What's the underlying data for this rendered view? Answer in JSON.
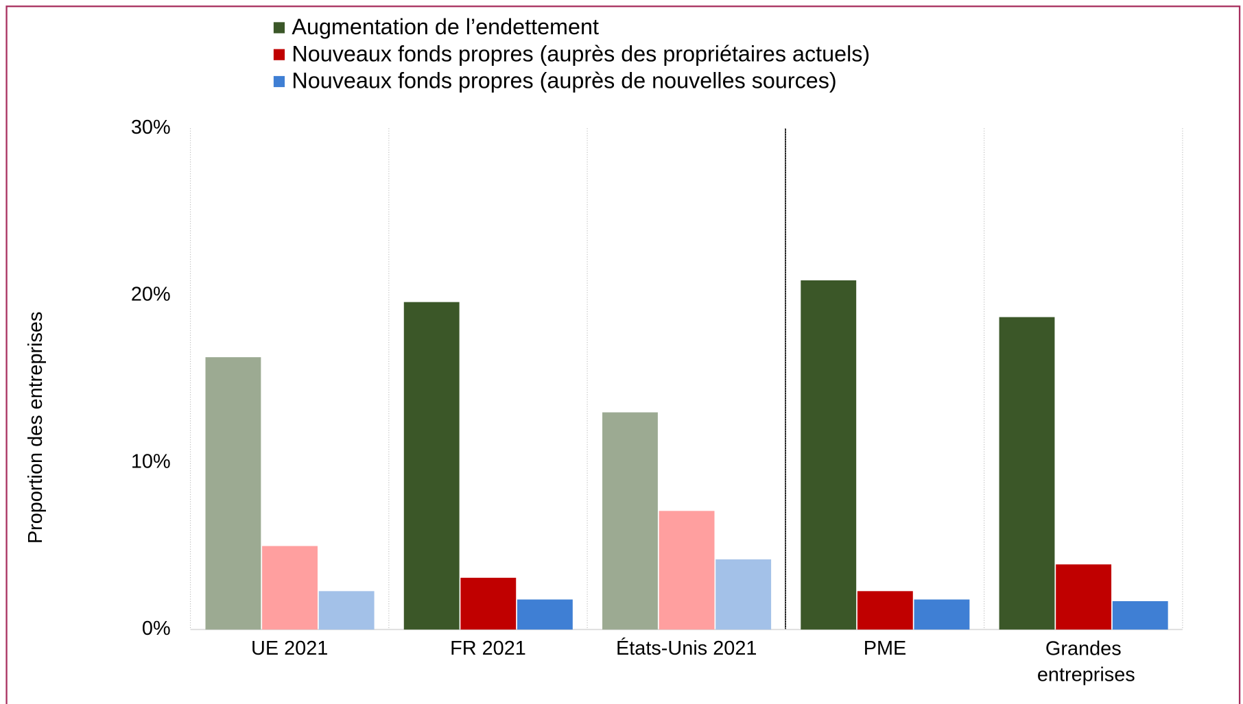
{
  "chart_data": {
    "type": "bar",
    "ylabel": "Proportion des entreprises",
    "categories": [
      "UE 2021",
      "FR 2021",
      "États-Unis 2021",
      "PME",
      "Grandes entreprises"
    ],
    "series": [
      {
        "name": "Augmentation de l’endettement",
        "color": "#3b5728",
        "colors": [
          "#9caa92",
          "#3b5728",
          "#9caa92",
          "#3b5728",
          "#3b5728"
        ],
        "values": [
          16.3,
          19.6,
          13.0,
          20.9,
          18.7
        ]
      },
      {
        "name": "Nouveaux fonds propres (auprès des propriétaires actuels)",
        "color": "#c00000",
        "colors": [
          "#ff9f9f",
          "#c00000",
          "#ff9f9f",
          "#c00000",
          "#c00000"
        ],
        "values": [
          5.0,
          3.1,
          7.1,
          2.3,
          3.9
        ]
      },
      {
        "name": "Nouveaux fonds propres (auprès de nouvelles sources)",
        "color": "#3f7fd4",
        "colors": [
          "#a3c1e8",
          "#3f7fd4",
          "#a3c1e8",
          "#3f7fd4",
          "#3f7fd4"
        ],
        "values": [
          2.3,
          1.8,
          4.2,
          1.8,
          1.7
        ]
      }
    ],
    "ylim": [
      0,
      30
    ],
    "yticks": [
      {
        "value": 0,
        "label": "0%"
      },
      {
        "value": 10,
        "label": "10%"
      },
      {
        "value": 20,
        "label": "20%"
      },
      {
        "value": 30,
        "label": "30%"
      }
    ],
    "xgrid": true
  }
}
